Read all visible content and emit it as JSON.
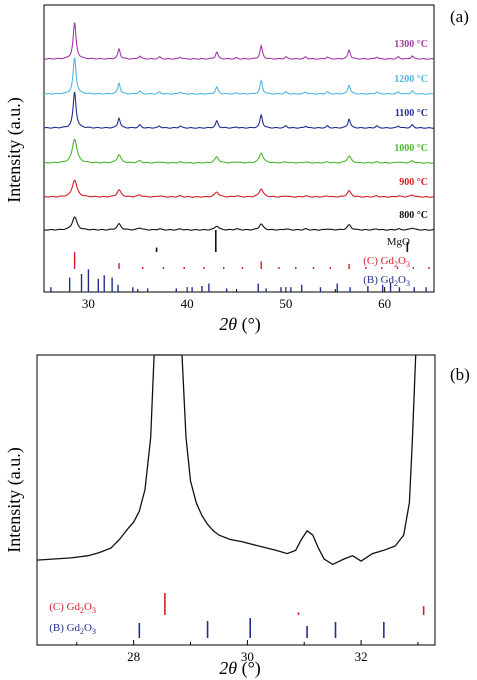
{
  "chart_data": [
    {
      "panel_label": "(a)",
      "type": "line",
      "xlabel_italic": "2θ",
      "xlabel_unit": " (°)",
      "ylabel": "Intensity (a.u.)",
      "xlim": [
        25.5,
        65
      ],
      "xticks": [
        30,
        40,
        50,
        60
      ],
      "peak_positions": [
        28.6,
        33.1,
        35.2,
        37.2,
        39.3,
        43.0,
        45.0,
        47.5,
        50.0,
        52.0,
        54.2,
        56.4,
        59.2,
        61.4,
        62.8
      ],
      "series": [
        {
          "name": "1300 °C",
          "color": "#a23aa8",
          "peak_heights": [
            36,
            10,
            3,
            2,
            2,
            7,
            1,
            13,
            2,
            2,
            2,
            9,
            2,
            2,
            3
          ]
        },
        {
          "name": "1200 °C",
          "color": "#4fb8dc",
          "peak_heights": [
            36,
            11,
            3,
            2,
            2,
            7,
            1,
            13,
            2,
            2,
            2,
            9,
            2,
            2,
            3
          ]
        },
        {
          "name": "1100 °C",
          "color": "#1f2f8f",
          "peak_heights": [
            36,
            10,
            3,
            2,
            2,
            7,
            1,
            13,
            2,
            2,
            2,
            9,
            2,
            2,
            3
          ]
        },
        {
          "name": "1000 °C",
          "color": "#4cb82c",
          "peak_heights": [
            24,
            8,
            2,
            1,
            1,
            6,
            1,
            10,
            1,
            1,
            1,
            7,
            1,
            1,
            2
          ]
        },
        {
          "name": "900 °C",
          "color": "#d21f28",
          "peak_heights": [
            17,
            7,
            2,
            1,
            1,
            5,
            1,
            8,
            1,
            1,
            1,
            6,
            1,
            1,
            2
          ]
        },
        {
          "name": "800 °C",
          "color": "#111111",
          "peak_heights": [
            13,
            6,
            2,
            1,
            1,
            4,
            1,
            6,
            1,
            1,
            1,
            5,
            1,
            1,
            2
          ]
        }
      ],
      "references": [
        {
          "name": "MgO",
          "color": "#111111",
          "lines": [
            [
              36.9,
              0.2
            ],
            [
              42.9,
              1.0
            ],
            [
              62.3,
              0.45
            ]
          ]
        },
        {
          "name": "(C) Gd",
          "sub": "2",
          "name2": "O",
          "sub2": "3",
          "color": "#d21f28",
          "lines": [
            [
              28.6,
              1.0
            ],
            [
              33.1,
              0.35
            ],
            [
              35.5,
              0.1
            ],
            [
              37.6,
              0.1
            ],
            [
              39.7,
              0.1
            ],
            [
              41.7,
              0.1
            ],
            [
              43.7,
              0.1
            ],
            [
              45.6,
              0.1
            ],
            [
              47.5,
              0.45
            ],
            [
              49.3,
              0.1
            ],
            [
              51.0,
              0.1
            ],
            [
              52.8,
              0.1
            ],
            [
              54.5,
              0.1
            ],
            [
              56.4,
              0.3
            ],
            [
              58.1,
              0.1
            ],
            [
              59.7,
              0.1
            ],
            [
              61.3,
              0.1
            ],
            [
              62.9,
              0.1
            ],
            [
              64.5,
              0.1
            ]
          ]
        },
        {
          "name": "(B) Gd",
          "sub": "2",
          "name2": "O",
          "sub2": "3",
          "color": "#1f2f8f",
          "lines": [
            [
              26.2,
              0.2
            ],
            [
              28.1,
              0.6
            ],
            [
              29.3,
              0.75
            ],
            [
              30.0,
              0.95
            ],
            [
              31.0,
              0.55
            ],
            [
              31.6,
              0.7
            ],
            [
              32.4,
              0.6
            ],
            [
              33.0,
              0.3
            ],
            [
              34.5,
              0.2
            ],
            [
              36.0,
              0.15
            ],
            [
              38.9,
              0.15
            ],
            [
              40.5,
              0.2
            ],
            [
              41.5,
              0.25
            ],
            [
              42.2,
              0.35
            ],
            [
              44.0,
              0.15
            ],
            [
              47.2,
              0.35
            ],
            [
              48.0,
              0.15
            ],
            [
              49.5,
              0.2
            ],
            [
              50.5,
              0.2
            ],
            [
              51.6,
              0.3
            ],
            [
              53.5,
              0.2
            ],
            [
              55.2,
              0.35
            ],
            [
              56.5,
              0.2
            ],
            [
              58.3,
              0.25
            ],
            [
              59.8,
              0.3
            ],
            [
              60.6,
              0.4
            ],
            [
              61.5,
              0.2
            ],
            [
              63.0,
              0.2
            ],
            [
              64.2,
              0.2
            ]
          ]
        }
      ]
    },
    {
      "panel_label": "(b)",
      "type": "line",
      "xlabel_italic": "2θ",
      "xlabel_unit": " (°)",
      "ylabel": "Intensity (a.u.)",
      "xlim": [
        26.3,
        33.3
      ],
      "xticks": [
        28,
        30,
        32
      ],
      "curve": [
        [
          26.3,
          0.055
        ],
        [
          26.6,
          0.06
        ],
        [
          26.9,
          0.065
        ],
        [
          27.2,
          0.075
        ],
        [
          27.4,
          0.09
        ],
        [
          27.6,
          0.11
        ],
        [
          27.75,
          0.15
        ],
        [
          27.9,
          0.2
        ],
        [
          28.0,
          0.23
        ],
        [
          28.1,
          0.28
        ],
        [
          28.2,
          0.38
        ],
        [
          28.3,
          0.62
        ],
        [
          28.36,
          1.05
        ],
        [
          28.85,
          1.05
        ],
        [
          28.92,
          0.62
        ],
        [
          29.0,
          0.42
        ],
        [
          29.1,
          0.32
        ],
        [
          29.2,
          0.26
        ],
        [
          29.3,
          0.22
        ],
        [
          29.4,
          0.19
        ],
        [
          29.5,
          0.17
        ],
        [
          29.7,
          0.15
        ],
        [
          29.9,
          0.14
        ],
        [
          30.2,
          0.12
        ],
        [
          30.5,
          0.1
        ],
        [
          30.7,
          0.085
        ],
        [
          30.85,
          0.1
        ],
        [
          30.95,
          0.15
        ],
        [
          31.05,
          0.19
        ],
        [
          31.15,
          0.17
        ],
        [
          31.25,
          0.11
        ],
        [
          31.35,
          0.06
        ],
        [
          31.5,
          0.035
        ],
        [
          31.7,
          0.06
        ],
        [
          31.85,
          0.075
        ],
        [
          32.0,
          0.05
        ],
        [
          32.2,
          0.085
        ],
        [
          32.4,
          0.1
        ],
        [
          32.6,
          0.12
        ],
        [
          32.75,
          0.17
        ],
        [
          32.85,
          0.32
        ],
        [
          32.9,
          0.6
        ],
        [
          32.96,
          1.05
        ]
      ],
      "references": [
        {
          "name": "(C) Gd",
          "sub": "2",
          "name2": "O",
          "sub2": "3",
          "color": "#d21f28",
          "lines": [
            [
              28.55,
              1.0
            ],
            [
              30.9,
              0.12
            ],
            [
              33.1,
              0.4
            ]
          ]
        },
        {
          "name": "(B) Gd",
          "sub": "2",
          "name2": "O",
          "sub2": "3",
          "color": "#1f2f8f",
          "lines": [
            [
              28.1,
              0.75
            ],
            [
              29.3,
              0.85
            ],
            [
              30.05,
              1.0
            ],
            [
              31.05,
              0.6
            ],
            [
              31.55,
              0.8
            ],
            [
              32.4,
              0.8
            ]
          ]
        }
      ]
    }
  ]
}
